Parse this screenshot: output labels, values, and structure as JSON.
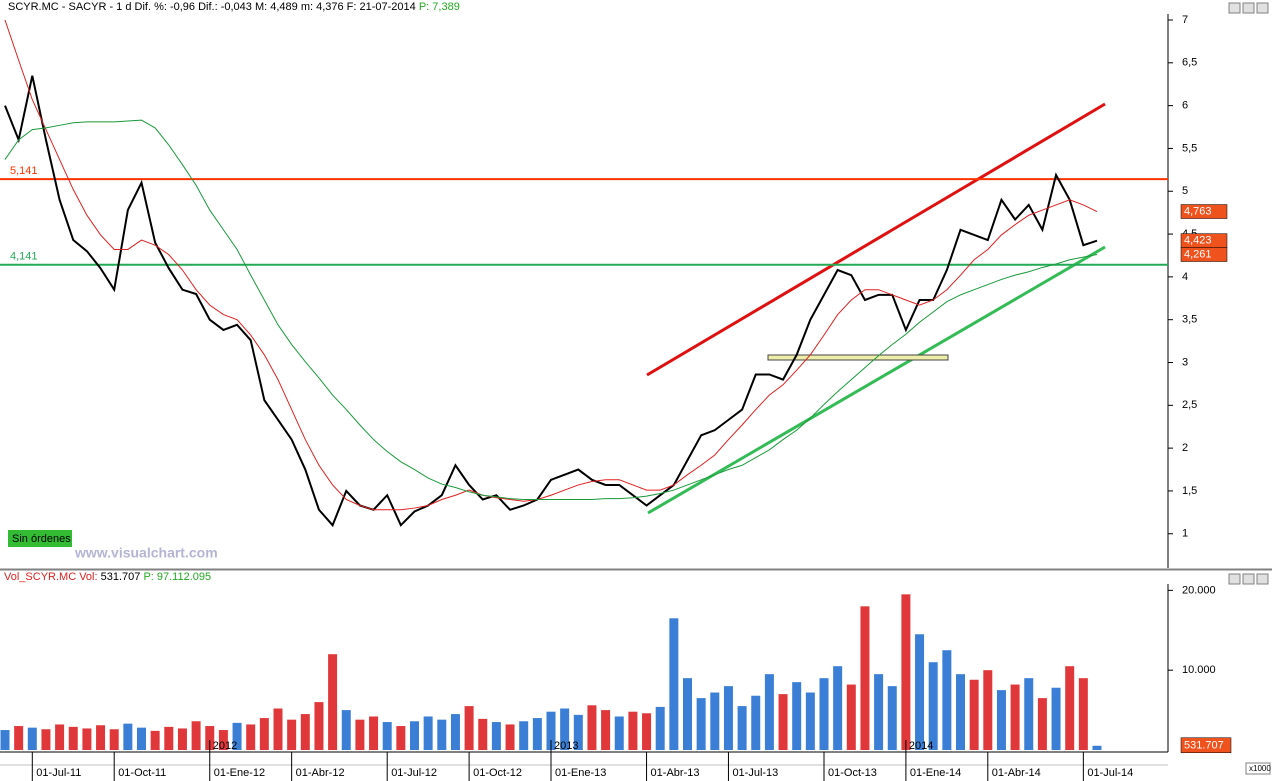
{
  "chart_data": [
    {
      "type": "line",
      "header": [
        "SCYR.MC - SACYR - 1 d Dif. %: -0,96 Dif.: -0,043 M: 4,489 m: 4,376 F: 21-07-2014",
        "P: 7,389"
      ],
      "header_colors": [
        "#000000",
        "#22aa22"
      ],
      "ylim": [
        0.6,
        7.07
      ],
      "yticks": [
        1,
        {
          "value": 1.5,
          "label": "1,5"
        },
        2,
        {
          "value": 2.5,
          "label": "2,5"
        },
        3,
        {
          "value": 3.5,
          "label": "3,5"
        },
        4,
        {
          "value": 4.5,
          "label": "4,5"
        },
        5,
        {
          "value": 5.5,
          "label": "5,5"
        },
        6,
        {
          "value": 6.5,
          "label": "6,5"
        },
        7
      ],
      "levels": [
        {
          "value": 5.141,
          "label": "5,141",
          "color": "#ff3300"
        },
        {
          "value": 4.141,
          "label": "4,141",
          "color": "#22aa55"
        }
      ],
      "series": [
        {
          "color": "#000000",
          "width": 2,
          "last_label": "4,423",
          "values": [
            6.0,
            5.6,
            6.35,
            5.6,
            4.9,
            4.43,
            4.3,
            4.1,
            3.85,
            4.78,
            5.1,
            4.4,
            4.1,
            3.85,
            3.8,
            3.5,
            3.38,
            3.44,
            3.26,
            2.56,
            2.33,
            2.1,
            1.75,
            1.28,
            1.1,
            1.5,
            1.33,
            1.28,
            1.45,
            1.1,
            1.26,
            1.33,
            1.45,
            1.8,
            1.57,
            1.4,
            1.45,
            1.28,
            1.33,
            1.4,
            1.63,
            1.69,
            1.75,
            1.63,
            1.57,
            1.57,
            1.45,
            1.33,
            1.45,
            1.57,
            1.86,
            2.15,
            2.21,
            2.33,
            2.45,
            2.86,
            2.86,
            2.8,
            3.09,
            3.5,
            3.79,
            4.08,
            4.02,
            3.73,
            3.79,
            3.79,
            3.38,
            3.73,
            3.73,
            4.08,
            4.55,
            4.49,
            4.43,
            4.9,
            4.67,
            4.84,
            4.55,
            5.19,
            4.9,
            4.37,
            4.423
          ]
        },
        {
          "color": "#e02020",
          "width": 1,
          "last_label": "4,763",
          "values": [
            7.0,
            6.53,
            6.07,
            5.72,
            5.37,
            5.02,
            4.72,
            4.49,
            4.32,
            4.32,
            4.43,
            4.37,
            4.26,
            4.08,
            3.85,
            3.67,
            3.56,
            3.5,
            3.32,
            3.09,
            2.8,
            2.45,
            2.1,
            1.8,
            1.57,
            1.4,
            1.33,
            1.28,
            1.28,
            1.28,
            1.3,
            1.33,
            1.4,
            1.45,
            1.51,
            1.45,
            1.42,
            1.4,
            1.38,
            1.4,
            1.45,
            1.51,
            1.57,
            1.61,
            1.63,
            1.63,
            1.57,
            1.51,
            1.51,
            1.57,
            1.69,
            1.8,
            1.92,
            2.1,
            2.27,
            2.45,
            2.62,
            2.74,
            2.91,
            3.09,
            3.32,
            3.56,
            3.73,
            3.85,
            3.85,
            3.79,
            3.73,
            3.67,
            3.73,
            3.85,
            4.02,
            4.2,
            4.32,
            4.49,
            4.61,
            4.72,
            4.78,
            4.84,
            4.9,
            4.84,
            4.763
          ]
        },
        {
          "color": "#1a9a3a",
          "width": 1,
          "last_label": "4,261",
          "values": [
            5.37,
            5.6,
            5.72,
            5.74,
            5.77,
            5.8,
            5.81,
            5.81,
            5.81,
            5.82,
            5.83,
            5.74,
            5.54,
            5.31,
            5.07,
            4.78,
            4.55,
            4.32,
            4.02,
            3.73,
            3.44,
            3.21,
            3.01,
            2.82,
            2.62,
            2.45,
            2.27,
            2.1,
            1.96,
            1.84,
            1.75,
            1.65,
            1.58,
            1.54,
            1.49,
            1.45,
            1.43,
            1.41,
            1.4,
            1.4,
            1.4,
            1.4,
            1.4,
            1.4,
            1.41,
            1.41,
            1.42,
            1.44,
            1.47,
            1.51,
            1.57,
            1.63,
            1.69,
            1.75,
            1.8,
            1.89,
            1.98,
            2.1,
            2.21,
            2.35,
            2.51,
            2.66,
            2.8,
            2.94,
            3.08,
            3.21,
            3.33,
            3.47,
            3.59,
            3.71,
            3.79,
            3.85,
            3.91,
            3.97,
            4.02,
            4.06,
            4.11,
            4.15,
            4.2,
            4.23,
            4.261
          ]
        }
      ]
    },
    {
      "type": "bar",
      "header": [
        "Vol_SCYR.MC Vol:",
        "531.707",
        "P: 97.112.095"
      ],
      "header_colors": [
        "#dd2222",
        "#000000",
        "#22aa22"
      ],
      "ylim": [
        0,
        21800
      ],
      "yticks": [
        {
          "value": 10000,
          "label": "10.000"
        },
        {
          "value": 20000,
          "label": "20.000"
        }
      ],
      "unit_label": "x1000",
      "up_color": "#3a7fd5",
      "down_color": "#e0383a",
      "last_label": "531.707",
      "categories": [
        null,
        null,
        "01-Jul-11",
        null,
        null,
        null,
        null,
        null,
        "01-Oct-11",
        null,
        null,
        null,
        null,
        null,
        null,
        "01-Ene-12",
        null,
        null,
        null,
        null,
        null,
        "01-Abr-12",
        null,
        null,
        null,
        null,
        null,
        null,
        "01-Jul-12",
        null,
        null,
        null,
        null,
        null,
        "01-Oct-12",
        null,
        null,
        null,
        null,
        null,
        "01-Ene-13",
        null,
        null,
        null,
        null,
        null,
        null,
        "01-Abr-13",
        null,
        null,
        null,
        null,
        null,
        "01-Jul-13",
        null,
        null,
        null,
        null,
        null,
        null,
        "01-Oct-13",
        null,
        null,
        null,
        null,
        null,
        "01-Ene-14",
        null,
        null,
        null,
        null,
        null,
        "01-Abr-14",
        null,
        null,
        null,
        null,
        null,
        null,
        "01-Jul-14",
        null
      ],
      "years": [
        null,
        null,
        null,
        null,
        null,
        null,
        null,
        null,
        null,
        null,
        null,
        null,
        null,
        null,
        null,
        "2012",
        null,
        null,
        null,
        null,
        null,
        null,
        null,
        null,
        null,
        null,
        null,
        null,
        null,
        null,
        null,
        null,
        null,
        null,
        null,
        null,
        null,
        null,
        null,
        null,
        "2013",
        null,
        null,
        null,
        null,
        null,
        null,
        null,
        null,
        null,
        null,
        null,
        null,
        null,
        null,
        null,
        null,
        null,
        null,
        null,
        null,
        null,
        null,
        null,
        null,
        null,
        "2014",
        null,
        null,
        null,
        null,
        null,
        null,
        null,
        null,
        null,
        null,
        null,
        null,
        null,
        null
      ],
      "values": [
        2500,
        3000,
        2800,
        2600,
        3200,
        2900,
        2700,
        3100,
        2600,
        3300,
        2800,
        2400,
        2900,
        2700,
        3600,
        3000,
        2500,
        3400,
        3200,
        4000,
        5200,
        3800,
        4500,
        6000,
        12000,
        5000,
        3800,
        4200,
        3500,
        3000,
        3600,
        4200,
        3800,
        4500,
        5500,
        3900,
        3500,
        3200,
        3600,
        4000,
        4800,
        5200,
        4400,
        5600,
        5000,
        4200,
        4800,
        4600,
        5400,
        16500,
        9000,
        6500,
        7200,
        8000,
        5500,
        6800,
        9500,
        7000,
        8500,
        7200,
        9000,
        10500,
        8200,
        18000,
        9500,
        8000,
        19500,
        14500,
        11000,
        12500,
        9500,
        8800,
        10000,
        7500,
        8200,
        9000,
        6500,
        7800,
        10500,
        9000,
        531.707
      ]
    }
  ],
  "status": "Sin órdenes",
  "watermark": "www.visualchart.com"
}
